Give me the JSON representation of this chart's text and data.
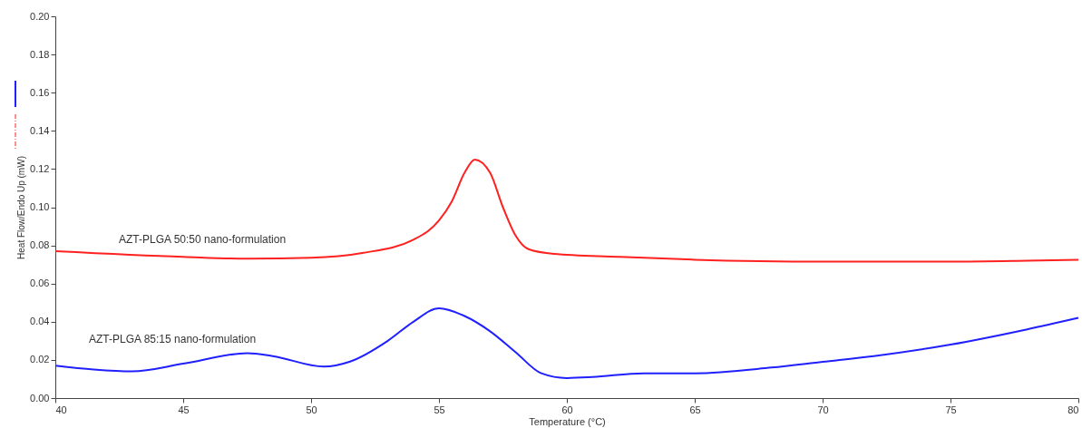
{
  "chart_data": {
    "type": "line",
    "xlabel": "Temperature (°C)",
    "ylabel": "Heat Flow/Endo Up (mW)",
    "xlim": [
      40,
      80
    ],
    "xticks": [
      40,
      45,
      50,
      55,
      60,
      65,
      70,
      75,
      80
    ],
    "ylim": [
      0,
      0.2
    ],
    "yticks": [
      {
        "value": 0,
        "label": "0.00"
      },
      {
        "value": 0.02,
        "label": "0.02"
      },
      {
        "value": 0.04,
        "label": "0.04"
      },
      {
        "value": 0.06,
        "label": "0.06"
      },
      {
        "value": 0.08,
        "label": "0.08"
      },
      {
        "value": 0.1,
        "label": "0.10"
      },
      {
        "value": 0.12,
        "label": "0.12"
      },
      {
        "value": 0.14,
        "label": "0.14"
      },
      {
        "value": 0.16,
        "label": "0.16"
      },
      {
        "value": 0.18,
        "label": "0.18"
      },
      {
        "value": 0.2,
        "label": "0.20"
      }
    ],
    "grid": false,
    "marker": "none",
    "line_style": "solid",
    "series": [
      {
        "name": "AZT-PLGA 50:50 nano-formulation",
        "color": "#ff2020",
        "x": [
          40,
          45,
          47.5,
          50,
          52,
          54,
          55,
          55.5,
          56,
          56.4,
          57,
          57.5,
          58,
          58.5,
          59.5,
          62,
          65,
          70,
          75,
          78,
          80
        ],
        "values": [
          0.077,
          0.074,
          0.073,
          0.0735,
          0.076,
          0.083,
          0.093,
          0.103,
          0.118,
          0.125,
          0.118,
          0.1,
          0.085,
          0.078,
          0.0755,
          0.074,
          0.0725,
          0.0715,
          0.0715,
          0.072,
          0.0725
        ]
      },
      {
        "name": "AZT-PLGA 85:15 nano-formulation",
        "color": "#2020ff",
        "x": [
          40,
          41.5,
          43,
          45,
          47.5,
          48.5,
          50.5,
          51.5,
          53,
          54,
          55,
          56,
          57,
          58,
          59,
          60,
          61,
          63,
          65,
          68,
          70,
          72,
          75,
          78,
          80
        ],
        "values": [
          0.017,
          0.015,
          0.014,
          0.018,
          0.0235,
          0.022,
          0.0165,
          0.019,
          0.03,
          0.04,
          0.047,
          0.043,
          0.035,
          0.024,
          0.013,
          0.0105,
          0.011,
          0.013,
          0.013,
          0.016,
          0.019,
          0.022,
          0.028,
          0.036,
          0.042
        ]
      }
    ]
  }
}
